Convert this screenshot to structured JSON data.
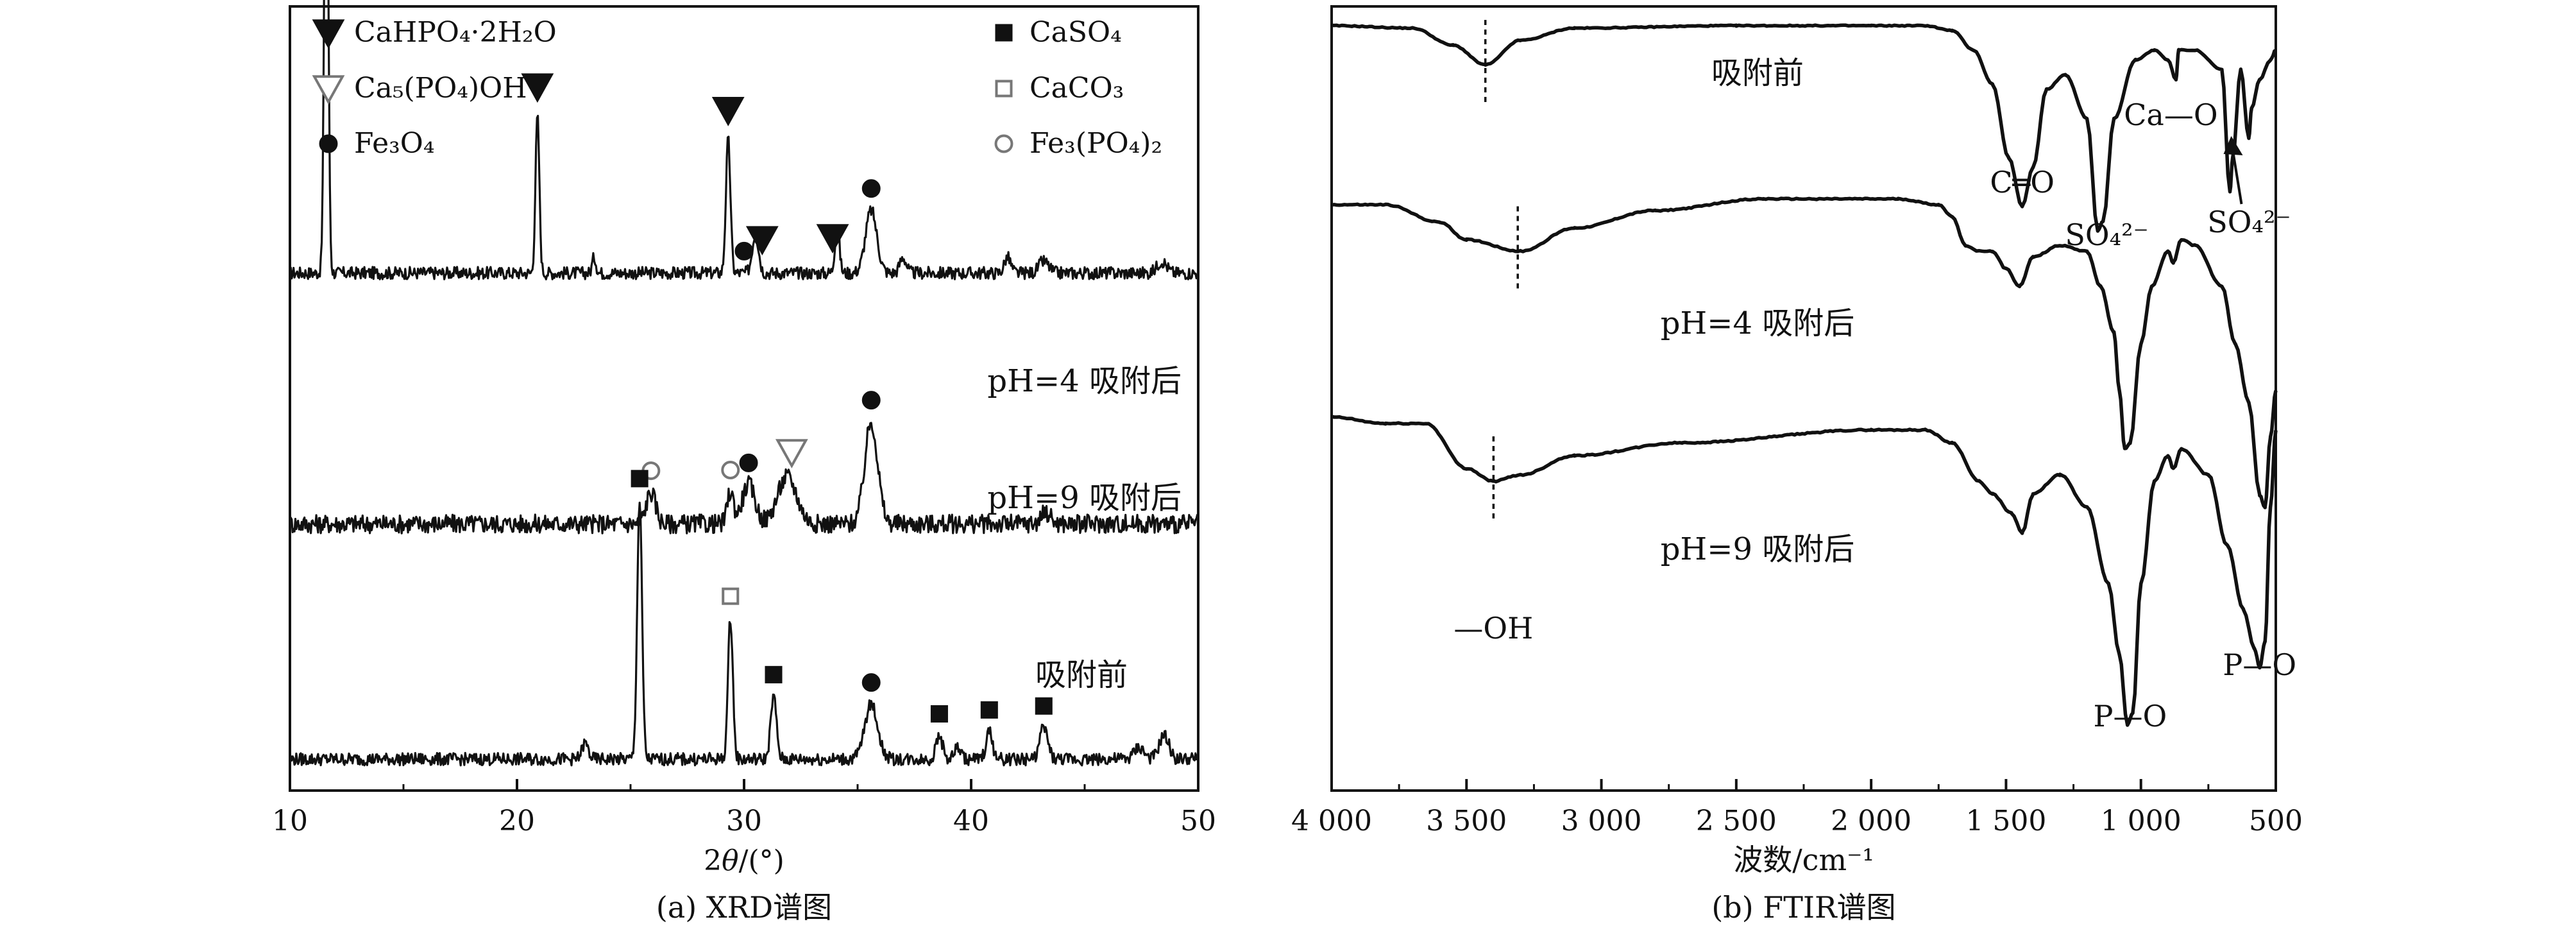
{
  "chart_data": [
    {
      "type": "line",
      "chart": "xrd",
      "caption": "(a) XRD谱图",
      "xlabel_prefix": "2",
      "xlabel_symbol": "θ",
      "xlabel_suffix": "/(°)",
      "ylabel": "",
      "xlim": [
        10,
        50
      ],
      "xticks": [
        10,
        20,
        30,
        40,
        50
      ],
      "y_ticks_shown": false,
      "grid": false,
      "legend_position": "top-right",
      "legend": [
        {
          "label": "CaHPO₄·2H₂O",
          "marker": "triangle-down-filled"
        },
        {
          "label": "CaSO₄",
          "marker": "square-filled"
        },
        {
          "label": "Ca₅(PO₄)OH",
          "marker": "triangle-down-open"
        },
        {
          "label": "CaCO₃",
          "marker": "square-open"
        },
        {
          "label": "Fe₃O₄",
          "marker": "circle-filled"
        },
        {
          "label": "Fe₃(PO₄)₂",
          "marker": "circle-open"
        }
      ],
      "series": [
        {
          "name": "pH=4 吸附后",
          "baseline": 0.66,
          "noise": 0.008,
          "peaks": [
            {
              "x": 11.6,
              "h": 0.67,
              "w": 0.12
            },
            {
              "x": 20.9,
              "h": 0.2,
              "w": 0.12
            },
            {
              "x": 23.4,
              "h": 0.02,
              "w": 0.12
            },
            {
              "x": 29.3,
              "h": 0.17,
              "w": 0.14
            },
            {
              "x": 30.5,
              "h": 0.05,
              "w": 0.2
            },
            {
              "x": 34.1,
              "h": 0.06,
              "w": 0.14
            },
            {
              "x": 35.6,
              "h": 0.08,
              "w": 0.35
            },
            {
              "x": 37.0,
              "h": 0.02,
              "w": 0.2
            },
            {
              "x": 41.6,
              "h": 0.02,
              "w": 0.2
            },
            {
              "x": 43.2,
              "h": 0.015,
              "w": 0.3
            },
            {
              "x": 48.4,
              "h": 0.015,
              "w": 0.3
            }
          ],
          "markers": [
            {
              "x": 11.6,
              "type": "triangle-down-filled"
            },
            {
              "x": 20.9,
              "type": "triangle-down-filled"
            },
            {
              "x": 29.3,
              "type": "triangle-down-filled"
            },
            {
              "x": 30.0,
              "type": "circle-filled"
            },
            {
              "x": 30.8,
              "type": "triangle-down-filled"
            },
            {
              "x": 33.9,
              "type": "triangle-down-filled"
            },
            {
              "x": 35.6,
              "type": "circle-filled"
            }
          ]
        },
        {
          "name": "pH=9 吸附后",
          "baseline": 0.34,
          "noise": 0.012,
          "peaks": [
            {
              "x": 25.9,
              "h": 0.04,
              "w": 0.3
            },
            {
              "x": 29.4,
              "h": 0.04,
              "w": 0.2
            },
            {
              "x": 30.2,
              "h": 0.05,
              "w": 0.4
            },
            {
              "x": 31.9,
              "h": 0.06,
              "w": 0.6
            },
            {
              "x": 35.6,
              "h": 0.13,
              "w": 0.4
            },
            {
              "x": 43.3,
              "h": 0.015,
              "w": 0.3
            }
          ],
          "markers": [
            {
              "x": 25.9,
              "type": "circle-open"
            },
            {
              "x": 29.4,
              "type": "circle-open"
            },
            {
              "x": 30.2,
              "type": "circle-filled"
            },
            {
              "x": 32.1,
              "type": "triangle-down-open"
            },
            {
              "x": 35.6,
              "type": "circle-filled"
            }
          ]
        },
        {
          "name": "吸附前",
          "baseline": 0.04,
          "noise": 0.008,
          "peaks": [
            {
              "x": 23.0,
              "h": 0.02,
              "w": 0.2
            },
            {
              "x": 25.4,
              "h": 0.33,
              "w": 0.15
            },
            {
              "x": 29.4,
              "h": 0.18,
              "w": 0.15
            },
            {
              "x": 31.3,
              "h": 0.08,
              "w": 0.18
            },
            {
              "x": 35.6,
              "h": 0.07,
              "w": 0.4
            },
            {
              "x": 38.6,
              "h": 0.03,
              "w": 0.2
            },
            {
              "x": 39.4,
              "h": 0.015,
              "w": 0.2
            },
            {
              "x": 40.8,
              "h": 0.035,
              "w": 0.2
            },
            {
              "x": 43.2,
              "h": 0.04,
              "w": 0.25
            },
            {
              "x": 47.4,
              "h": 0.015,
              "w": 0.3
            },
            {
              "x": 48.5,
              "h": 0.03,
              "w": 0.3
            }
          ],
          "markers": [
            {
              "x": 25.4,
              "type": "square-filled"
            },
            {
              "x": 29.4,
              "type": "square-open"
            },
            {
              "x": 31.3,
              "type": "square-filled"
            },
            {
              "x": 35.6,
              "type": "circle-filled"
            },
            {
              "x": 38.6,
              "type": "square-filled"
            },
            {
              "x": 40.8,
              "type": "square-filled"
            },
            {
              "x": 43.2,
              "type": "square-filled"
            }
          ]
        }
      ]
    },
    {
      "type": "line",
      "chart": "ftir",
      "caption": "(b) FTIR谱图",
      "xlabel": "波数/cm⁻¹",
      "ylabel": "",
      "xlim": [
        4000,
        500
      ],
      "xaxis_reversed": true,
      "xticks": [
        4000,
        3500,
        3000,
        2500,
        2000,
        1500,
        1000,
        500
      ],
      "xticklabels": [
        "4 000",
        "3 500",
        "3 000",
        "2 500",
        "2 000",
        "1 500",
        "1 000",
        "500"
      ],
      "y_ticks_shown": false,
      "grid": false,
      "series": [
        {
          "name": "吸附前",
          "offset": 0.0,
          "points": [
            [
              4000,
              0.97
            ],
            [
              3700,
              0.965
            ],
            [
              3550,
              0.93
            ],
            [
              3430,
              0.89
            ],
            [
              3300,
              0.94
            ],
            [
              3100,
              0.965
            ],
            [
              2500,
              0.97
            ],
            [
              2000,
              0.97
            ],
            [
              1800,
              0.97
            ],
            [
              1700,
              0.96
            ],
            [
              1620,
              0.92
            ],
            [
              1550,
              0.85
            ],
            [
              1490,
              0.7
            ],
            [
              1440,
              0.6
            ],
            [
              1400,
              0.68
            ],
            [
              1350,
              0.84
            ],
            [
              1280,
              0.87
            ],
            [
              1200,
              0.78
            ],
            [
              1160,
              0.55
            ],
            [
              1140,
              0.57
            ],
            [
              1100,
              0.78
            ],
            [
              1020,
              0.9
            ],
            [
              950,
              0.92
            ],
            [
              900,
              0.9
            ],
            [
              870,
              0.86
            ],
            [
              860,
              0.92
            ],
            [
              800,
              0.92
            ],
            [
              700,
              0.88
            ],
            [
              670,
              0.63
            ],
            [
              660,
              0.7
            ],
            [
              630,
              0.88
            ],
            [
              600,
              0.74
            ],
            [
              590,
              0.8
            ],
            [
              560,
              0.86
            ],
            [
              520,
              0.9
            ],
            [
              500,
              0.92
            ]
          ]
        },
        {
          "name": "pH=4 吸附后",
          "offset": 0.0,
          "points": [
            [
              4000,
              0.62
            ],
            [
              3800,
              0.62
            ],
            [
              3600,
              0.59
            ],
            [
              3500,
              0.56
            ],
            [
              3300,
              0.54
            ],
            [
              3100,
              0.58
            ],
            [
              2800,
              0.61
            ],
            [
              2400,
              0.63
            ],
            [
              1900,
              0.63
            ],
            [
              1750,
              0.62
            ],
            [
              1700,
              0.6
            ],
            [
              1650,
              0.55
            ],
            [
              1600,
              0.54
            ],
            [
              1550,
              0.54
            ],
            [
              1500,
              0.51
            ],
            [
              1450,
              0.48
            ],
            [
              1400,
              0.53
            ],
            [
              1300,
              0.55
            ],
            [
              1200,
              0.54
            ],
            [
              1150,
              0.48
            ],
            [
              1100,
              0.4
            ],
            [
              1080,
              0.3
            ],
            [
              1060,
              0.2
            ],
            [
              1040,
              0.21
            ],
            [
              1000,
              0.38
            ],
            [
              960,
              0.48
            ],
            [
              900,
              0.54
            ],
            [
              880,
              0.52
            ],
            [
              850,
              0.56
            ],
            [
              800,
              0.55
            ],
            [
              700,
              0.48
            ],
            [
              650,
              0.38
            ],
            [
              600,
              0.28
            ],
            [
              560,
              0.12
            ],
            [
              540,
              0.1
            ],
            [
              520,
              0.22
            ],
            [
              500,
              0.3
            ]
          ]
        },
        {
          "name": "pH=9 吸附后",
          "offset": 0.0,
          "points": [
            [
              4000,
              0.32
            ],
            [
              3800,
              0.31
            ],
            [
              3650,
              0.31
            ],
            [
              3500,
              0.24
            ],
            [
              3400,
              0.22
            ],
            [
              3300,
              0.23
            ],
            [
              3100,
              0.26
            ],
            [
              2700,
              0.28
            ],
            [
              2000,
              0.3
            ],
            [
              1800,
              0.3
            ],
            [
              1700,
              0.28
            ],
            [
              1600,
              0.22
            ],
            [
              1550,
              0.2
            ],
            [
              1480,
              0.17
            ],
            [
              1440,
              0.14
            ],
            [
              1400,
              0.2
            ],
            [
              1300,
              0.23
            ],
            [
              1200,
              0.18
            ],
            [
              1120,
              0.06
            ],
            [
              1080,
              -0.05
            ],
            [
              1050,
              -0.16
            ],
            [
              1030,
              -0.14
            ],
            [
              1000,
              0.06
            ],
            [
              950,
              0.22
            ],
            [
              900,
              0.26
            ],
            [
              880,
              0.24
            ],
            [
              850,
              0.27
            ],
            [
              750,
              0.23
            ],
            [
              680,
              0.12
            ],
            [
              620,
              0.02
            ],
            [
              580,
              -0.04
            ],
            [
              560,
              -0.07
            ],
            [
              540,
              -0.03
            ],
            [
              520,
              0.18
            ],
            [
              500,
              0.3
            ]
          ]
        }
      ],
      "annotations": [
        {
          "text": "C═O",
          "x": 1440
        },
        {
          "text": "SO₄²⁻",
          "x": 1150
        },
        {
          "text": "Ca—O",
          "x": 870
        },
        {
          "text": "SO₄²⁻",
          "x": 670
        },
        {
          "text": "—OH",
          "x": 3400
        },
        {
          "text": "P—O",
          "x": 1040
        },
        {
          "text": "P—O",
          "x": 560
        }
      ]
    }
  ]
}
